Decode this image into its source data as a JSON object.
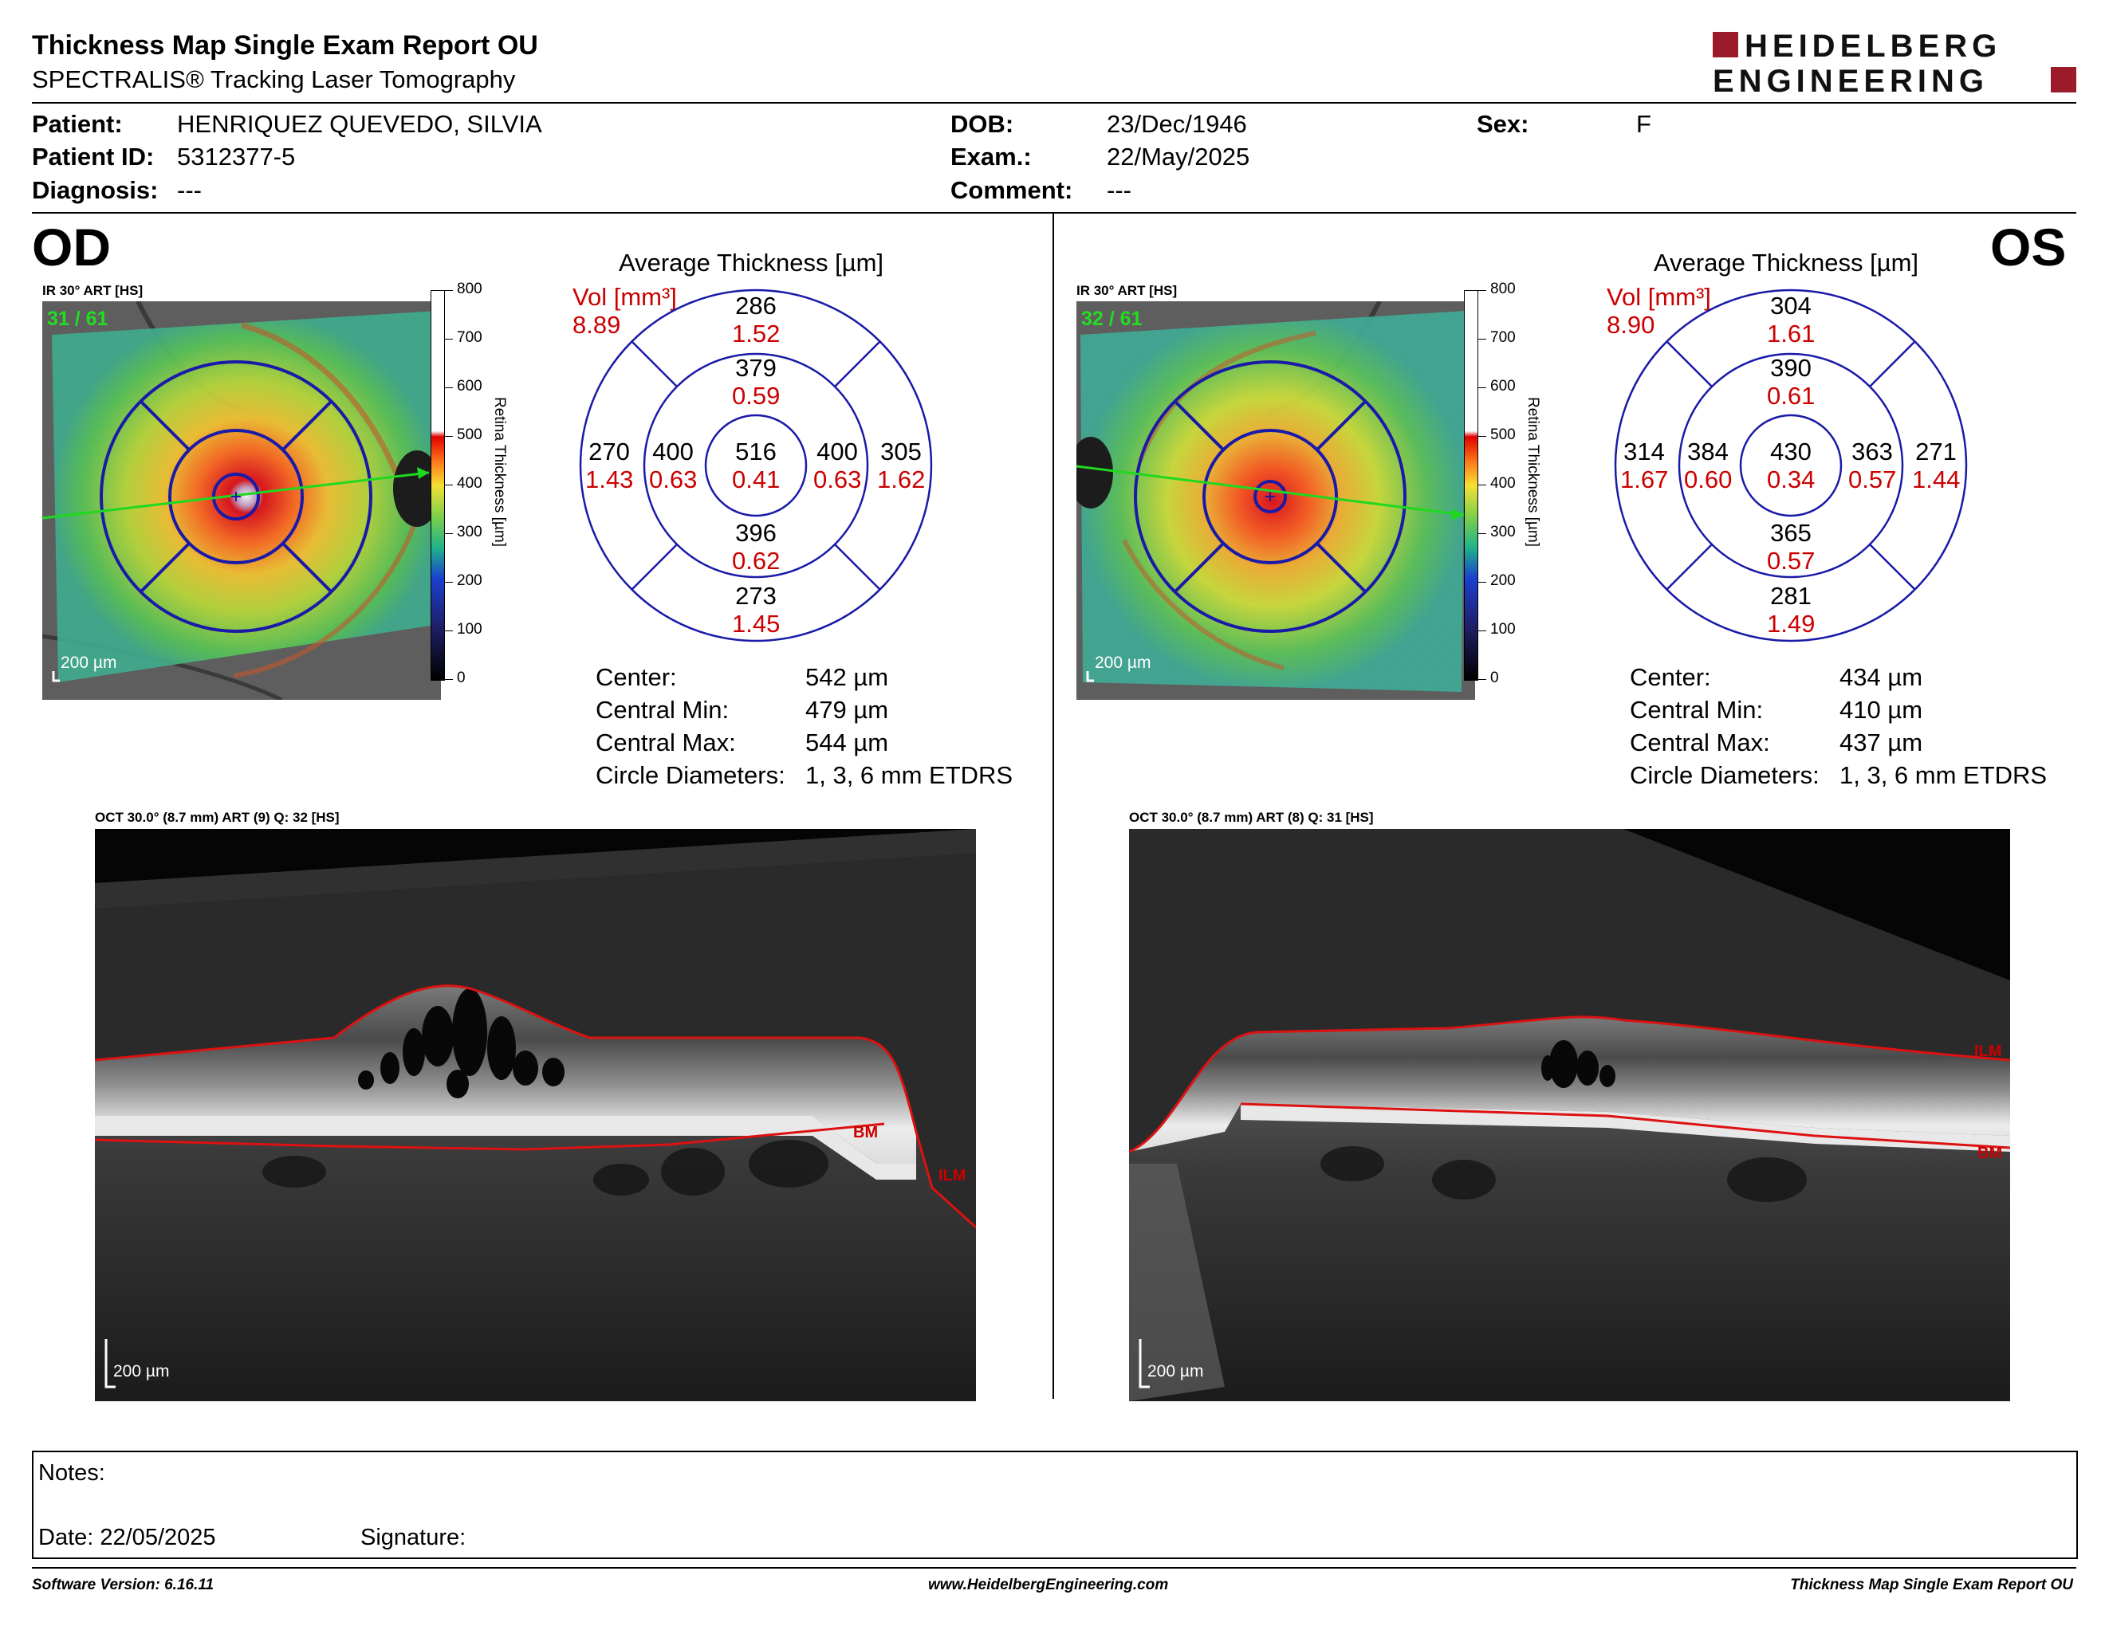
{
  "header": {
    "title": "Thickness Map Single Exam Report OU",
    "subtitle": "SPECTRALIS® Tracking Laser Tomography",
    "logo_line1": "HEIDELBERG",
    "logo_line2": "ENGINEERING"
  },
  "patient": {
    "patient_label": "Patient:",
    "patient_value": "HENRIQUEZ QUEVEDO, SILVIA",
    "id_label": "Patient ID:",
    "id_value": "5312377-5",
    "diagnosis_label": "Diagnosis:",
    "diagnosis_value": "---",
    "dob_label": "DOB:",
    "dob_value": "23/Dec/1946",
    "exam_label": "Exam.:",
    "exam_value": "22/May/2025",
    "comment_label": "Comment:",
    "comment_value": "---",
    "sex_label": "Sex:",
    "sex_value": "F"
  },
  "scale": {
    "ticks": [
      "800",
      "700",
      "600",
      "500",
      "400",
      "300",
      "200",
      "100",
      "0"
    ],
    "axis_label": "Retina  Thickness [µm]"
  },
  "od": {
    "eye": "OD",
    "ir_label": "IR 30° ART [HS]",
    "frame": "31 / 61",
    "scale_bar": "200 µm",
    "avg_title": "Average Thickness [µm]",
    "vol_label": "Vol [mm³]",
    "vol_value": "8.89",
    "etdrs": {
      "center": {
        "t": "516",
        "v": "0.41"
      },
      "inner_sup": {
        "t": "379",
        "v": "0.59"
      },
      "inner_inf": {
        "t": "396",
        "v": "0.62"
      },
      "inner_left": {
        "t": "400",
        "v": "0.63"
      },
      "inner_right": {
        "t": "400",
        "v": "0.63"
      },
      "outer_sup": {
        "t": "286",
        "v": "1.52"
      },
      "outer_inf": {
        "t": "273",
        "v": "1.45"
      },
      "outer_left": {
        "t": "270",
        "v": "1.43"
      },
      "outer_right": {
        "t": "305",
        "v": "1.62"
      }
    },
    "stats": {
      "center_label": "Center:",
      "center_value": "542 µm",
      "min_label": "Central Min:",
      "min_value": "479 µm",
      "max_label": "Central Max:",
      "max_value": "544 µm",
      "diam_label": "Circle Diameters:",
      "diam_value": "1, 3, 6 mm ETDRS"
    },
    "oct_label": "OCT 30.0° (8.7 mm) ART (9) Q: 32 [HS]",
    "oct_scale": "200 µm",
    "ilm": "ILM",
    "bm": "BM"
  },
  "os": {
    "eye": "OS",
    "ir_label": "IR 30° ART [HS]",
    "frame": "32 / 61",
    "scale_bar": "200 µm",
    "avg_title": "Average Thickness [µm]",
    "vol_label": "Vol [mm³]",
    "vol_value": "8.90",
    "etdrs": {
      "center": {
        "t": "430",
        "v": "0.34"
      },
      "inner_sup": {
        "t": "390",
        "v": "0.61"
      },
      "inner_inf": {
        "t": "365",
        "v": "0.57"
      },
      "inner_left": {
        "t": "384",
        "v": "0.60"
      },
      "inner_right": {
        "t": "363",
        "v": "0.57"
      },
      "outer_sup": {
        "t": "304",
        "v": "1.61"
      },
      "outer_inf": {
        "t": "281",
        "v": "1.49"
      },
      "outer_left": {
        "t": "314",
        "v": "1.67"
      },
      "outer_right": {
        "t": "271",
        "v": "1.44"
      }
    },
    "stats": {
      "center_label": "Center:",
      "center_value": "434 µm",
      "min_label": "Central Min:",
      "min_value": "410 µm",
      "max_label": "Central Max:",
      "max_value": "437 µm",
      "diam_label": "Circle Diameters:",
      "diam_value": "1, 3, 6 mm ETDRS"
    },
    "oct_label": "OCT 30.0° (8.7 mm) ART (8) Q: 31 [HS]",
    "oct_scale": "200 µm",
    "ilm": "ILM",
    "bm": "BM"
  },
  "notes": {
    "notes_label": "Notes:",
    "date_label": "Date: 22/05/2025",
    "signature_label": "Signature:"
  },
  "footer": {
    "software": "Software Version: 6.16.11",
    "website": "www.HeidelbergEngineering.com",
    "report": "Thickness Map Single Exam Report OU"
  },
  "colors": {
    "red_text": "#cc0000",
    "etdrs_blue": "#1a1aa8",
    "logo_red": "#9b1b2a",
    "vol_red": "#cc0000"
  }
}
